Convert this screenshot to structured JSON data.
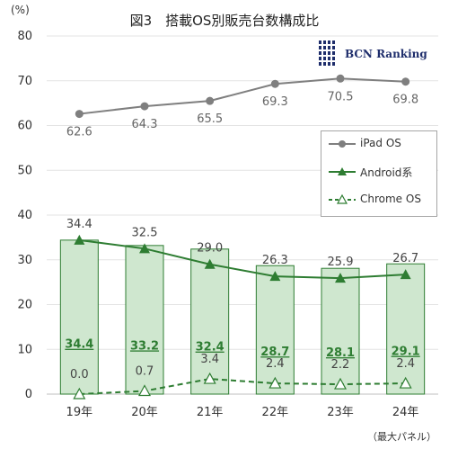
{
  "chart_data": {
    "type": "bar+line",
    "title": "図3　搭載OS別販売台数構成比",
    "unit_label": "(%)",
    "note": "（最大パネル）",
    "logo_text": "BCN Ranking",
    "categories": [
      "19年",
      "20年",
      "21年",
      "22年",
      "23年",
      "24年"
    ],
    "ylim": [
      0,
      80
    ],
    "yticks": [
      0,
      10,
      20,
      30,
      40,
      50,
      60,
      70,
      80
    ],
    "grid": true,
    "legend_position": "right",
    "bars": {
      "name": "",
      "values": [
        34.4,
        33.2,
        32.4,
        28.7,
        28.1,
        29.1
      ],
      "fill_color": "#cfe7cf",
      "border_color": "#2e7d32",
      "label_color": "#2e7d32"
    },
    "series": [
      {
        "name": "iPad OS",
        "values": [
          62.6,
          64.3,
          65.5,
          69.3,
          70.5,
          69.8
        ],
        "color": "#7f7f7f",
        "marker": "circle",
        "line": "solid"
      },
      {
        "name": "Android系",
        "values": [
          34.4,
          32.5,
          29.0,
          26.3,
          25.9,
          26.7
        ],
        "color": "#2e7d32",
        "marker": "triangle",
        "line": "solid"
      },
      {
        "name": "Chrome OS",
        "values": [
          0.0,
          0.7,
          3.4,
          2.4,
          2.2,
          2.4
        ],
        "color": "#2e7d32",
        "marker": "triangle-open",
        "line": "dashed"
      }
    ]
  }
}
